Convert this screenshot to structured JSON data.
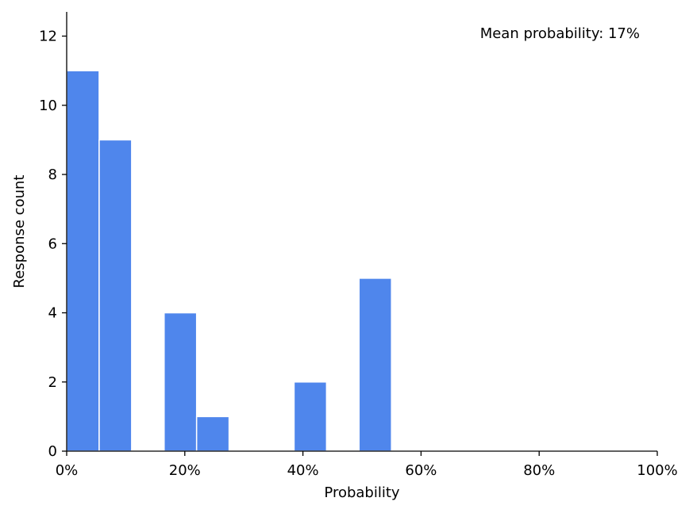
{
  "chart_data": {
    "type": "bar",
    "bins": [
      {
        "start": 0,
        "end": 5.5,
        "count": 11
      },
      {
        "start": 5.5,
        "end": 11,
        "count": 9
      },
      {
        "start": 11,
        "end": 16.5,
        "count": 0
      },
      {
        "start": 16.5,
        "end": 22,
        "count": 4
      },
      {
        "start": 22,
        "end": 27.5,
        "count": 1
      },
      {
        "start": 27.5,
        "end": 33,
        "count": 0
      },
      {
        "start": 33,
        "end": 38.5,
        "count": 0
      },
      {
        "start": 38.5,
        "end": 44,
        "count": 2
      },
      {
        "start": 44,
        "end": 49.5,
        "count": 0
      },
      {
        "start": 49.5,
        "end": 55,
        "count": 5
      }
    ],
    "xlabel": "Probability",
    "ylabel": "Response count",
    "xlim": [
      0,
      100
    ],
    "ylim": [
      0,
      12.7
    ],
    "x_ticks": [
      "0%",
      "20%",
      "40%",
      "60%",
      "80%",
      "100%"
    ],
    "y_ticks": [
      "0",
      "2",
      "4",
      "6",
      "8",
      "10",
      "12"
    ],
    "annotation": "Mean probability: 17%",
    "grid": false,
    "bar_color": "#4f86ec"
  }
}
